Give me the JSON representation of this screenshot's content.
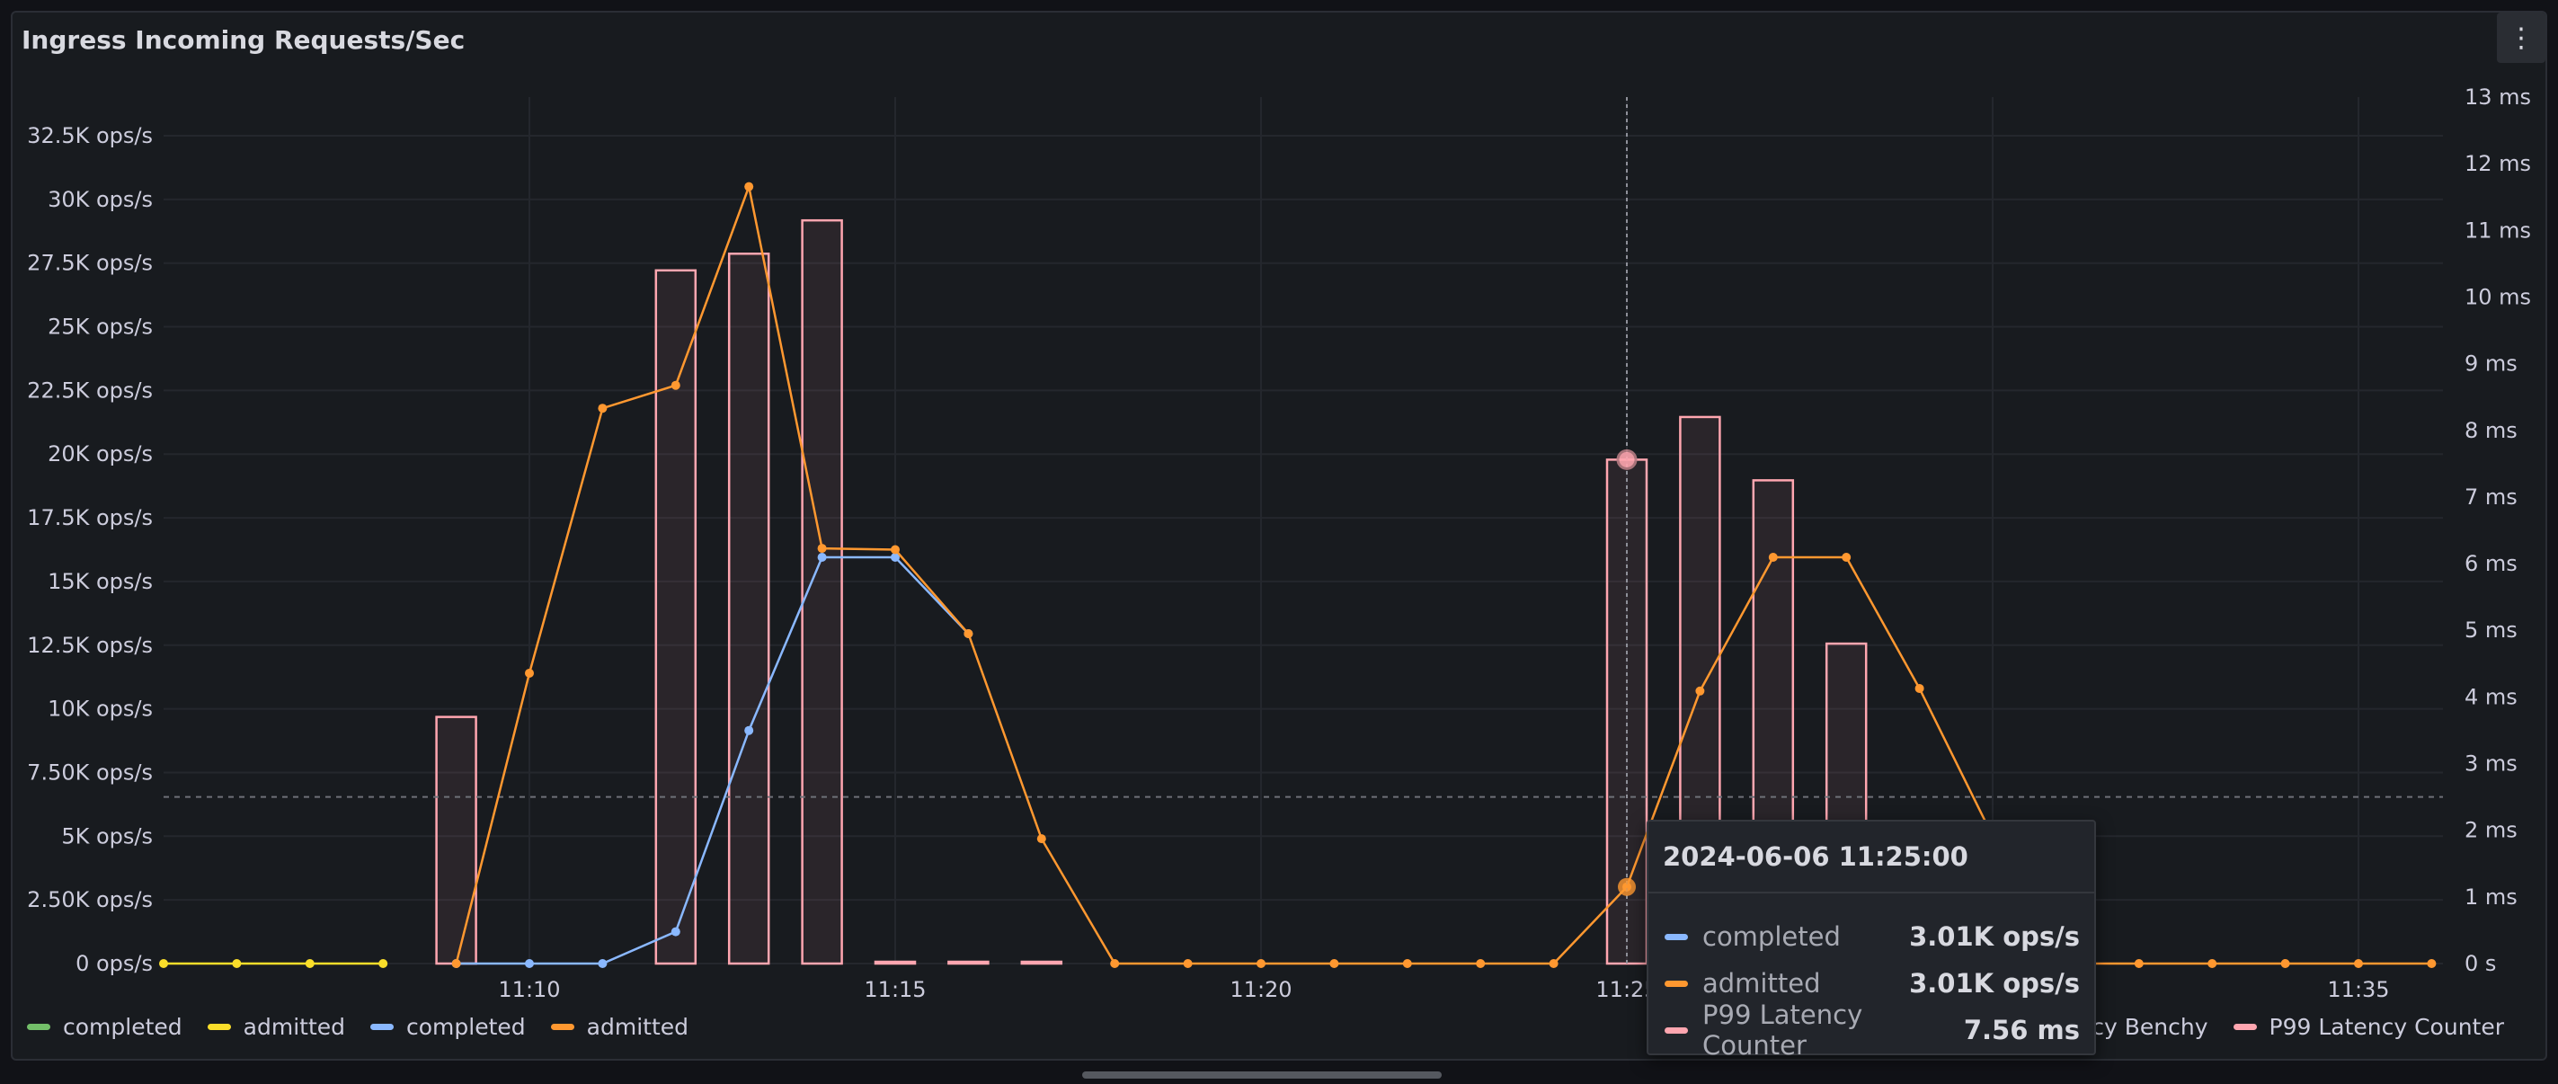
{
  "panel": {
    "title": "Ingress Incoming Requests/Sec",
    "menu_icon": "vertical-ellipsis-icon"
  },
  "colors": {
    "green": "#73bf69",
    "yellow": "#fade2a",
    "blue": "#8ab8ff",
    "orange": "#ff9830",
    "pink": "#ffa6b0",
    "bar_fill": "rgba(255,166,176,0.08)"
  },
  "chart_data": {
    "type": "line",
    "x_label_ticks": [
      "11:10",
      "11:15",
      "11:20",
      "11:25",
      "11:35"
    ],
    "x_range": [
      "11:05:00",
      "11:35:00"
    ],
    "left_axis": {
      "ticks": [
        "0 ops/s",
        "2.50K ops/s",
        "5K ops/s",
        "7.50K ops/s",
        "10K ops/s",
        "12.5K ops/s",
        "15K ops/s",
        "17.5K ops/s",
        "20K ops/s",
        "22.5K ops/s",
        "25K ops/s",
        "27.5K ops/s",
        "30K ops/s",
        "32.5K ops/s"
      ],
      "range": [
        0,
        32500
      ],
      "unit": "ops/s"
    },
    "right_axis": {
      "ticks": [
        "0 s",
        "1 ms",
        "2 ms",
        "3 ms",
        "4 ms",
        "5 ms",
        "6 ms",
        "7 ms",
        "8 ms",
        "9 ms",
        "10 ms",
        "11 ms",
        "12 ms",
        "13 ms"
      ],
      "range": [
        0,
        13
      ],
      "unit": "ms"
    },
    "threshold_ms": 2.5,
    "grid": true,
    "hover_time": "11:25:00",
    "series": [
      {
        "name": "admitted",
        "color": "yellow",
        "kind": "line",
        "axis": "left",
        "points": [
          [
            "11:05:00",
            0
          ],
          [
            "11:06:00",
            0
          ],
          [
            "11:07:00",
            0
          ],
          [
            "11:08:00",
            0
          ]
        ]
      },
      {
        "name": "completed",
        "color": "blue",
        "kind": "line",
        "axis": "left",
        "points": [
          [
            "11:09:00",
            0
          ],
          [
            "11:10:00",
            0
          ],
          [
            "11:11:00",
            0
          ],
          [
            "11:12:00",
            1250
          ],
          [
            "11:13:00",
            9150
          ],
          [
            "11:14:00",
            15950
          ],
          [
            "11:15:00",
            15950
          ],
          [
            "11:16:00",
            12950
          ]
        ]
      },
      {
        "name": "admitted",
        "color": "orange",
        "kind": "line",
        "axis": "left",
        "points": [
          [
            "11:09:00",
            0
          ],
          [
            "11:10:00",
            11400
          ],
          [
            "11:11:00",
            21800
          ],
          [
            "11:12:00",
            22700
          ],
          [
            "11:13:00",
            30500
          ],
          [
            "11:14:00",
            16300
          ],
          [
            "11:15:00",
            16250
          ],
          [
            "11:16:00",
            12950
          ],
          [
            "11:17:00",
            4900
          ],
          [
            "11:18:00",
            0
          ],
          [
            "11:19:00",
            0
          ],
          [
            "11:20:00",
            0
          ],
          [
            "11:21:00",
            0
          ],
          [
            "11:22:00",
            0
          ],
          [
            "11:23:00",
            0
          ],
          [
            "11:24:00",
            0
          ],
          [
            "11:25:00",
            3010
          ],
          [
            "11:26:00",
            10700
          ],
          [
            "11:27:00",
            15950
          ],
          [
            "11:28:00",
            15950
          ],
          [
            "11:29:00",
            10800
          ],
          [
            "11:30:00",
            5000
          ],
          [
            "11:31:00",
            0
          ],
          [
            "11:32:00",
            0
          ],
          [
            "11:33:00",
            0
          ],
          [
            "11:34:00",
            0
          ],
          [
            "11:35:00",
            0
          ],
          [
            "11:36:00",
            0
          ]
        ]
      },
      {
        "name": "P99 Latency Counter",
        "color": "pink",
        "kind": "bars",
        "axis": "right",
        "points": [
          [
            "11:09:00",
            3.7
          ],
          [
            "11:12:00",
            10.4
          ],
          [
            "11:13:00",
            10.65
          ],
          [
            "11:14:00",
            11.15
          ],
          [
            "11:15:00",
            0
          ],
          [
            "11:16:00",
            0
          ],
          [
            "11:17:00",
            0
          ],
          [
            "11:25:00",
            7.56
          ],
          [
            "11:26:00",
            8.2
          ],
          [
            "11:27:00",
            7.25
          ],
          [
            "11:28:00",
            4.8
          ]
        ]
      }
    ]
  },
  "legend": {
    "left": [
      {
        "label": "completed",
        "color": "green"
      },
      {
        "label": "admitted",
        "color": "yellow"
      },
      {
        "label": "completed",
        "color": "blue"
      },
      {
        "label": "admitted",
        "color": "orange"
      }
    ],
    "right": [
      {
        "label": "atency Benchy",
        "color": "pink"
      },
      {
        "label": "P99 Latency Counter",
        "color": "pink"
      }
    ]
  },
  "tooltip": {
    "time": "2024-06-06 11:25:00",
    "rows": [
      {
        "name": "completed",
        "value": "3.01K ops/s",
        "color": "blue"
      },
      {
        "name": "admitted",
        "value": "3.01K ops/s",
        "color": "orange"
      },
      {
        "name": "P99 Latency Counter",
        "value": "7.56 ms",
        "color": "pink"
      }
    ]
  }
}
